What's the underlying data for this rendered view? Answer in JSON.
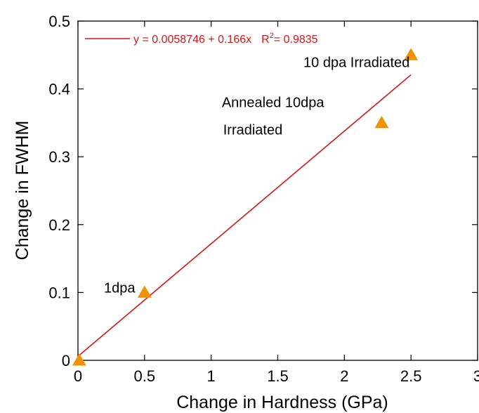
{
  "chart_data": {
    "type": "scatter",
    "xlabel": "Change in Hardness (GPa)",
    "ylabel": "Change in FWHM",
    "xlim": [
      0,
      3
    ],
    "ylim": [
      0,
      0.5
    ],
    "x_ticks": [
      0,
      0.5,
      1,
      1.5,
      2,
      2.5,
      3
    ],
    "x_tick_labels": [
      "0",
      "0.5",
      "1",
      "1.5",
      "2",
      "2.5",
      "3"
    ],
    "y_ticks": [
      0,
      0.1,
      0.2,
      0.3,
      0.4,
      0.5
    ],
    "y_tick_labels": [
      "0",
      "0.1",
      "0.2",
      "0.3",
      "0.4",
      "0.5"
    ],
    "grid": false,
    "series": [
      {
        "marker": "triangle",
        "color": "#f39200",
        "x": [
          0.01,
          0.5,
          2.28,
          2.5
        ],
        "y": [
          0.0,
          0.1,
          0.35,
          0.45
        ]
      }
    ],
    "fit": {
      "color": "#d8141a",
      "intercept": 0.0058746,
      "slope": 0.166,
      "x_range": [
        0,
        2.5
      ],
      "equation": "y = 0.0058746 + 0.166x",
      "r2_prefix": "R",
      "r2_sup": "2",
      "r2_value": "= 0.9835"
    },
    "annotations": [
      {
        "text": "10 dpa Irradiated",
        "x": 2.49,
        "y": 0.432,
        "anchor": "end"
      },
      {
        "text": "Annealed 10dpa",
        "x": 1.08,
        "y": 0.373,
        "anchor": "start"
      },
      {
        "text": "Irradiated",
        "x": 1.09,
        "y": 0.333,
        "anchor": "start"
      },
      {
        "text": "1dpa",
        "x": 0.43,
        "y": 0.1,
        "anchor": "end"
      }
    ]
  }
}
